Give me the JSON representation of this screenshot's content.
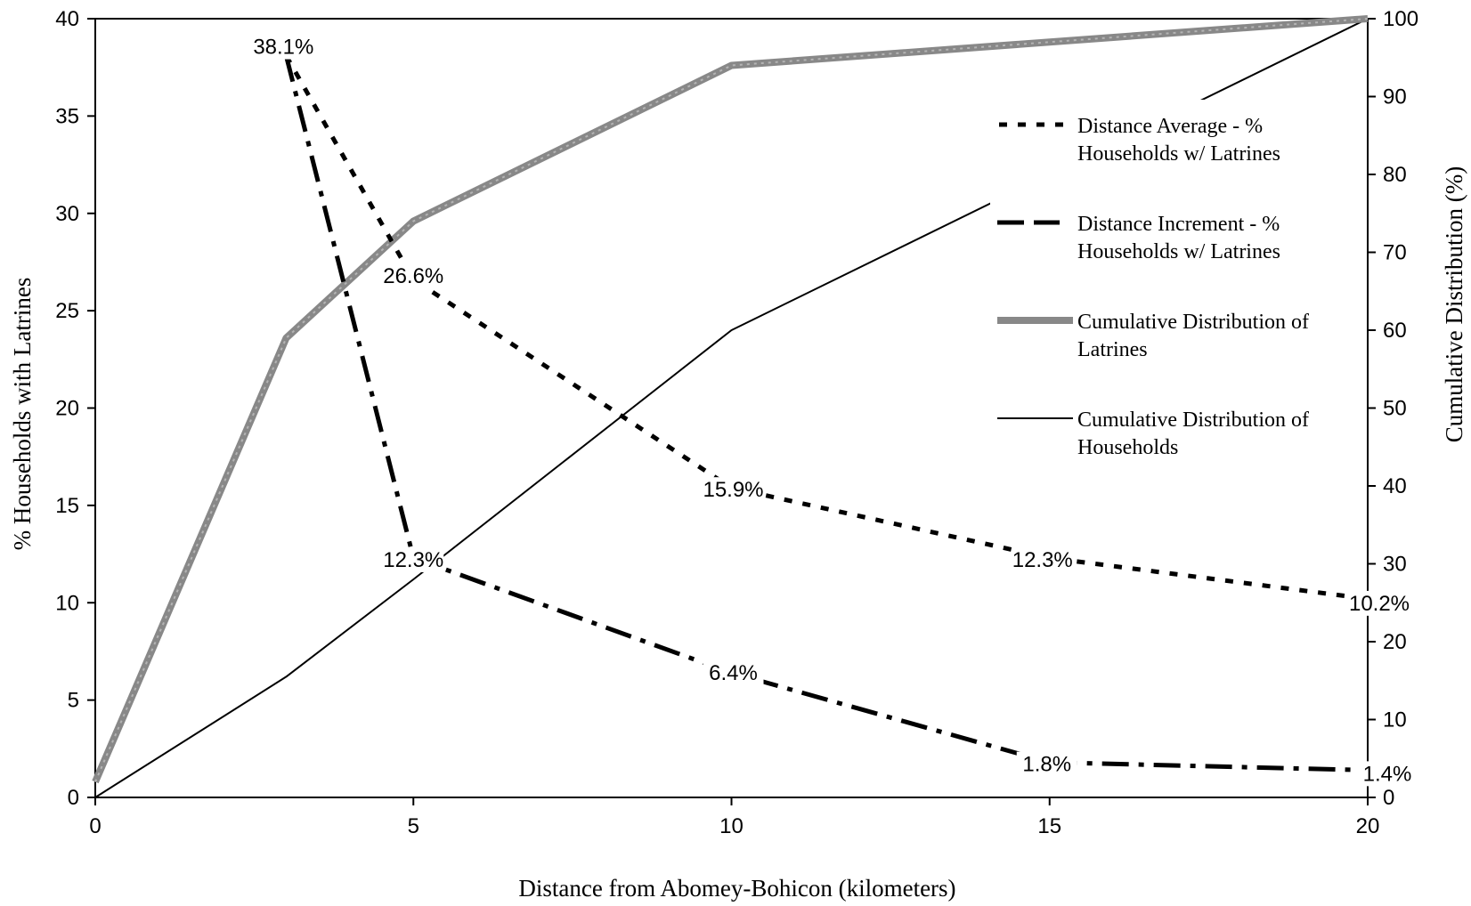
{
  "chart_data": {
    "type": "line",
    "xlabel": "Distance from Abomey-Bohicon (kilometers)",
    "ylabel_left": "% Households with Latrines",
    "ylabel_right": "Cumulative Distribution (%)",
    "xlim": [
      0,
      20
    ],
    "ylim_left": [
      0,
      40
    ],
    "ylim_right": [
      0,
      100
    ],
    "x_ticks": [
      0,
      5,
      10,
      15,
      20
    ],
    "y_left_ticks": [
      0,
      5,
      10,
      15,
      20,
      25,
      30,
      35,
      40
    ],
    "y_right_ticks": [
      0,
      10,
      20,
      30,
      40,
      50,
      60,
      70,
      80,
      90,
      100
    ],
    "grid": false,
    "legend_position": "right",
    "series": [
      {
        "name": "Distance Average - % Households w/ Latrines",
        "axis": "left",
        "style": "dotted",
        "x": [
          3,
          5,
          10,
          15,
          20
        ],
        "y": [
          38.1,
          26.6,
          15.9,
          12.3,
          10.2
        ],
        "labels": [
          "38.1%",
          "26.6%",
          "15.9%",
          "12.3%",
          "10.2%"
        ]
      },
      {
        "name": "Distance Increment - % Households w/ Latrines",
        "axis": "left",
        "style": "dash-dot",
        "x": [
          3,
          5,
          10,
          15,
          20
        ],
        "y": [
          38.1,
          12.3,
          6.4,
          1.8,
          1.4
        ],
        "labels": [
          "",
          "12.3%",
          "6.4%",
          "1.8%",
          "1.4%"
        ]
      },
      {
        "name": "Cumulative Distribution of Latrines",
        "axis": "right",
        "style": "thick-gray",
        "x": [
          0,
          3,
          5,
          10,
          20
        ],
        "y": [
          2,
          59,
          74,
          94,
          100
        ]
      },
      {
        "name": "Cumulative Distribution of Households",
        "axis": "right",
        "style": "thin-solid",
        "x": [
          0,
          3,
          5,
          10,
          20
        ],
        "y": [
          0,
          15.5,
          28,
          60,
          100
        ]
      }
    ],
    "legend": [
      {
        "line1": "Distance Average - %",
        "line2": "Households w/ Latrines"
      },
      {
        "line1": "Distance Increment - %",
        "line2": "Households w/ Latrines"
      },
      {
        "line1": "Cumulative Distribution of",
        "line2": "Latrines"
      },
      {
        "line1": "Cumulative Distribution of",
        "line2": "Households"
      }
    ]
  }
}
